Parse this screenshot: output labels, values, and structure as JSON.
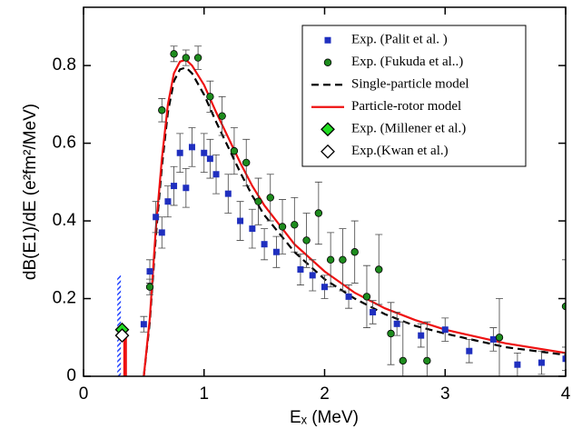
{
  "chart_data": {
    "type": "scatter",
    "xlabel": "Eₓ (MeV)",
    "ylabel": "dB(E1)/dE (e²fm²/MeV)",
    "xlim": [
      0,
      4
    ],
    "ylim": [
      0,
      0.95
    ],
    "xticks": [
      0,
      1,
      2,
      3,
      4
    ],
    "yticks": [
      0,
      0.2,
      0.4,
      0.6,
      0.8
    ],
    "legend": "upper right",
    "series": [
      {
        "name": "Exp. (Palit et al. )",
        "kind": "marker",
        "marker": "square",
        "color": "#1f2fbf",
        "x": [
          0.5,
          0.55,
          0.6,
          0.65,
          0.7,
          0.75,
          0.8,
          0.85,
          0.9,
          1.0,
          1.05,
          1.1,
          1.2,
          1.3,
          1.4,
          1.5,
          1.6,
          1.8,
          1.9,
          2.0,
          2.2,
          2.4,
          2.6,
          2.8,
          3.0,
          3.2,
          3.4,
          3.6,
          3.8,
          4.0
        ],
        "values": [
          0.134,
          0.27,
          0.41,
          0.37,
          0.45,
          0.49,
          0.575,
          0.485,
          0.59,
          0.575,
          0.56,
          0.52,
          0.47,
          0.4,
          0.38,
          0.34,
          0.32,
          0.275,
          0.26,
          0.23,
          0.205,
          0.165,
          0.135,
          0.105,
          0.12,
          0.065,
          0.095,
          0.03,
          0.035,
          0.045
        ],
        "errors": [
          0.02,
          0.03,
          0.04,
          0.04,
          0.04,
          0.05,
          0.05,
          0.05,
          0.05,
          0.05,
          0.05,
          0.05,
          0.05,
          0.05,
          0.05,
          0.04,
          0.04,
          0.04,
          0.04,
          0.03,
          0.03,
          0.03,
          0.03,
          0.03,
          0.03,
          0.03,
          0.03,
          0.03,
          0.03,
          0.03
        ]
      },
      {
        "name": "Exp. (Fukuda et al..)",
        "kind": "marker",
        "marker": "circle",
        "color": "#1e8c1e",
        "x": [
          0.55,
          0.65,
          0.75,
          0.85,
          0.95,
          1.05,
          1.15,
          1.25,
          1.35,
          1.45,
          1.55,
          1.65,
          1.75,
          1.85,
          1.95,
          2.05,
          2.15,
          2.25,
          2.35,
          2.45,
          2.55,
          2.65,
          2.85,
          3.45,
          4.0
        ],
        "values": [
          0.23,
          0.685,
          0.83,
          0.82,
          0.82,
          0.72,
          0.67,
          0.58,
          0.55,
          0.45,
          0.46,
          0.385,
          0.39,
          0.35,
          0.42,
          0.3,
          0.3,
          0.32,
          0.205,
          0.275,
          0.11,
          0.04,
          0.04,
          0.1,
          0.18
        ],
        "errors": [
          0.02,
          0.03,
          0.02,
          0.02,
          0.03,
          0.04,
          0.05,
          0.06,
          0.06,
          0.06,
          0.06,
          0.07,
          0.07,
          0.07,
          0.08,
          0.07,
          0.08,
          0.08,
          0.08,
          0.09,
          0.08,
          0.1,
          0.1,
          0.1,
          0.12
        ]
      },
      {
        "name": "Single-particle model",
        "kind": "line",
        "dash": true,
        "color": "#000000",
        "x": [
          0.5,
          0.55,
          0.6,
          0.65,
          0.7,
          0.75,
          0.8,
          0.85,
          0.9,
          1.0,
          1.1,
          1.2,
          1.3,
          1.4,
          1.5,
          1.75,
          2.0,
          2.25,
          2.5,
          2.75,
          3.0,
          3.5,
          4.0
        ],
        "values": [
          0,
          0.14,
          0.36,
          0.54,
          0.68,
          0.76,
          0.79,
          0.795,
          0.78,
          0.725,
          0.655,
          0.59,
          0.525,
          0.465,
          0.415,
          0.32,
          0.25,
          0.2,
          0.16,
          0.13,
          0.11,
          0.075,
          0.055
        ]
      },
      {
        "name": "Particle-rotor model",
        "kind": "line",
        "dash": false,
        "color": "#ee1111",
        "x": [
          0.5,
          0.55,
          0.6,
          0.65,
          0.7,
          0.75,
          0.8,
          0.85,
          0.9,
          1.0,
          1.1,
          1.2,
          1.3,
          1.4,
          1.5,
          1.75,
          2.0,
          2.25,
          2.5,
          2.75,
          3.0,
          3.5,
          4.0
        ],
        "values": [
          0,
          0.15,
          0.38,
          0.56,
          0.7,
          0.78,
          0.81,
          0.815,
          0.8,
          0.75,
          0.68,
          0.615,
          0.55,
          0.49,
          0.44,
          0.34,
          0.27,
          0.215,
          0.175,
          0.145,
          0.12,
          0.085,
          0.06
        ]
      },
      {
        "name": "Exp. (Millener et al.)",
        "kind": "marker",
        "marker": "diamond",
        "color": "#22dd22",
        "x": [
          0.32
        ],
        "values": [
          0.12
        ]
      },
      {
        "name": "Exp.(Kwan et al.)",
        "kind": "marker",
        "marker": "diamond",
        "color": "#ffffff",
        "x": [
          0.32
        ],
        "values": [
          0.105
        ]
      }
    ],
    "bars": [
      {
        "x": [
          0.28,
          0.31
        ],
        "value": 0.26,
        "color": "#2244ff",
        "hatch": true
      },
      {
        "x": [
          0.33,
          0.36
        ],
        "value": 0.1,
        "color": "#ee1111",
        "hatch": false
      }
    ]
  }
}
